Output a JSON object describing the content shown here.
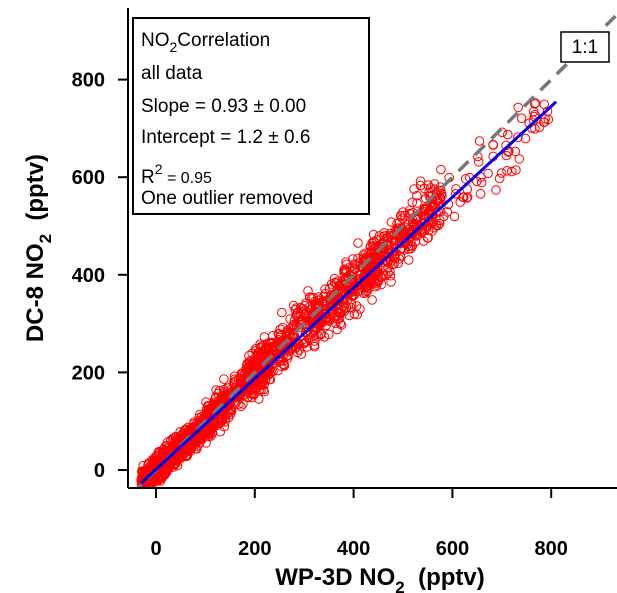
{
  "chart_data": {
    "type": "scatter",
    "xlabel": "WP-3D  NO",
    "xlabel_sub": "2",
    "xlabel_unit": "(pptv)",
    "ylabel": "DC-8 NO",
    "ylabel_sub": "2",
    "ylabel_unit": "(pptv)",
    "xlim": [
      -50,
      930
    ],
    "ylim": [
      -50,
      940
    ],
    "xticks": [
      "0",
      "200",
      "400",
      "600",
      "800"
    ],
    "yticks": [
      "0",
      "200",
      "400",
      "600",
      "800"
    ],
    "xtick_values": [
      0,
      200,
      400,
      600,
      800
    ],
    "ytick_values": [
      0,
      200,
      400,
      600,
      800
    ],
    "grid": false,
    "annotation": {
      "line1_prefix": "NO",
      "line1_sub": "2",
      "line1_suffix": "Correlation",
      "line2": "all data",
      "line3": "Slope = 0.93 ± 0.00",
      "line4": "Intercept = 1.2 ± 0.6",
      "line5_prefix": "R",
      "line5_sup": "2",
      "line5_suffix": " = 0.95",
      "line6": "One outlier removed",
      "placement": "top-left"
    },
    "one_to_one_label": "1:1",
    "fit": {
      "slope": 0.93,
      "intercept": 1.2,
      "x_range": [
        -30,
        810
      ],
      "color": "#0000ee"
    },
    "one_to_one": {
      "x_range": [
        -50,
        930
      ],
      "color": "#777777",
      "dash": true
    },
    "series": [
      {
        "marker": "open-circle",
        "color": "#ff0000",
        "clusters": [
          {
            "x_range": [
              -30,
              120
            ],
            "count": 900,
            "slope": 0.93,
            "spread": 22
          },
          {
            "x_range": [
              100,
              230
            ],
            "count": 400,
            "slope": 0.97,
            "spread": 30
          },
          {
            "x_range": [
              180,
              330
            ],
            "count": 320,
            "slope": 1.0,
            "spread": 40
          },
          {
            "x_range": [
              320,
              450
            ],
            "count": 280,
            "slope": 0.95,
            "spread": 45
          },
          {
            "x_range": [
              420,
              580
            ],
            "count": 300,
            "slope": 0.96,
            "spread": 45
          },
          {
            "x_range": [
              580,
              800
            ],
            "count": 60,
            "slope": 0.93,
            "spread": 50
          }
        ]
      }
    ]
  }
}
